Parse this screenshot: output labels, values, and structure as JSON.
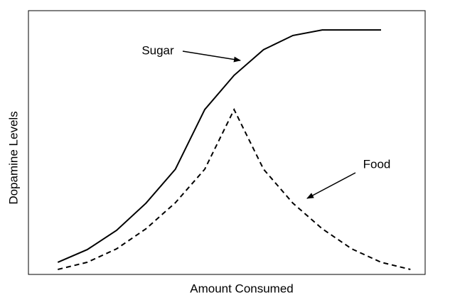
{
  "chart_data": {
    "type": "line",
    "xlabel": "Amount Consumed",
    "ylabel": "Dopamine Levels",
    "xlim": [
      0,
      13.5
    ],
    "ylim": [
      0,
      100
    ],
    "series": [
      {
        "name": "Sugar",
        "color": "#000000",
        "style": "solid",
        "x": [
          1,
          2,
          3,
          4,
          5,
          6,
          7,
          8,
          9,
          10,
          12
        ],
        "values": [
          4.6,
          9.4,
          16.7,
          27,
          39.9,
          62.5,
          75.5,
          85.2,
          90.6,
          92.7,
          92.7
        ]
      },
      {
        "name": "Food",
        "color": "#000000",
        "style": "dashed",
        "x": [
          1,
          2,
          3,
          4,
          5,
          6,
          7,
          8,
          9,
          10,
          11,
          12,
          13
        ],
        "values": [
          1.9,
          4.6,
          9.7,
          17.3,
          27.2,
          39.9,
          62.5,
          39.9,
          27,
          17.3,
          9.7,
          4.6,
          1.9
        ]
      }
    ]
  }
}
